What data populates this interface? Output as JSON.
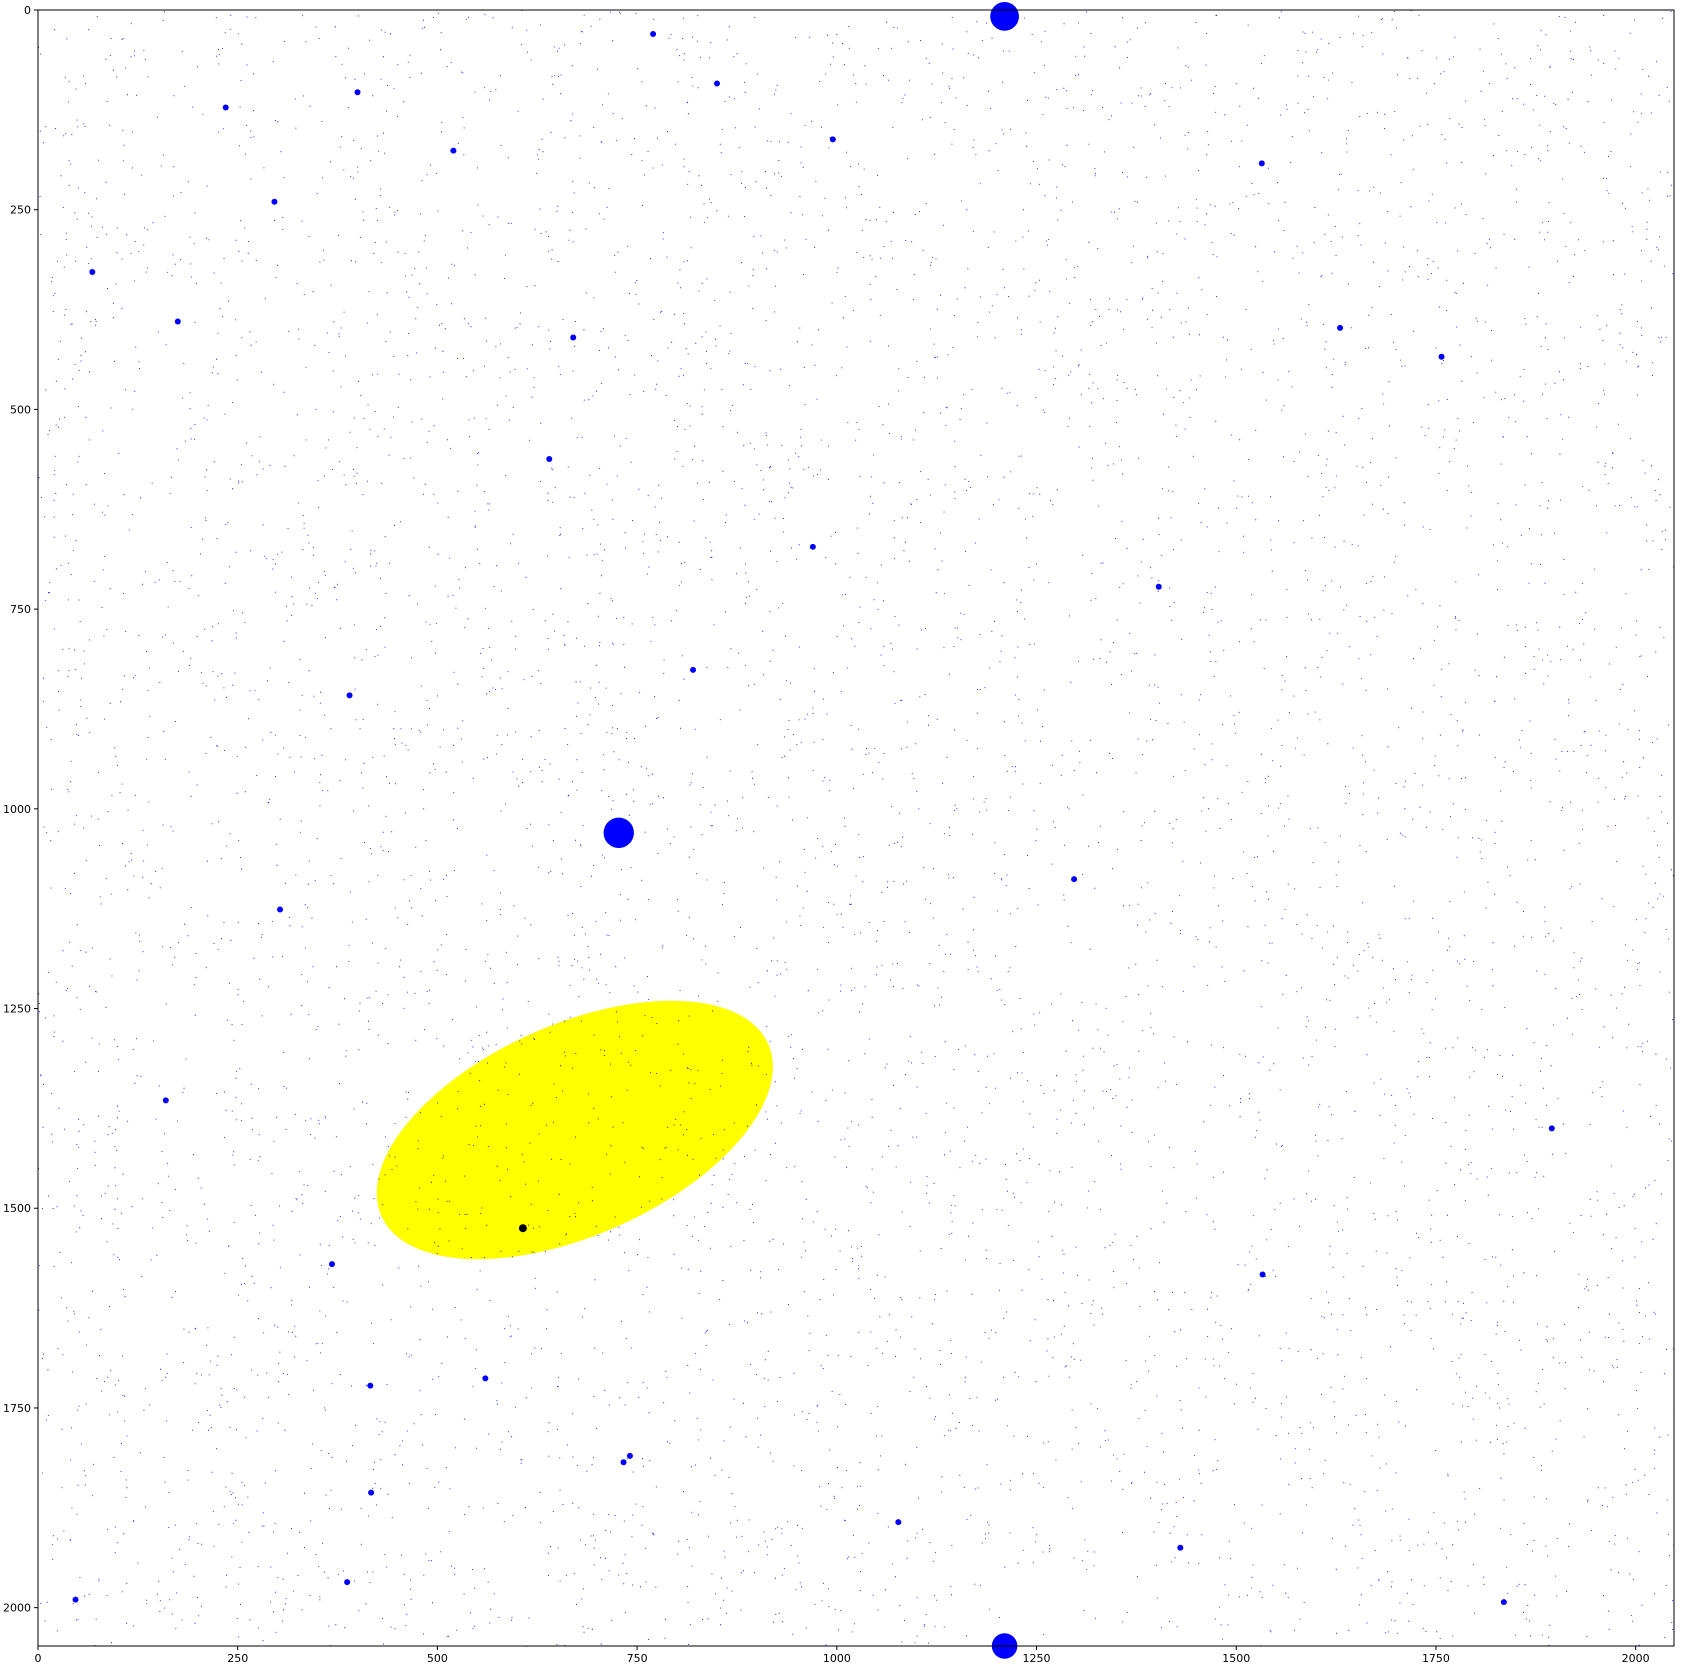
{
  "chart_data": {
    "type": "scatter",
    "title": "",
    "xlabel": "",
    "ylabel": "",
    "xlim": [
      0,
      2048
    ],
    "ylim": [
      2048,
      0
    ],
    "y_inverted": true,
    "grid": false,
    "x_ticks": [
      0,
      250,
      500,
      750,
      1000,
      1250,
      1500,
      1750,
      2000
    ],
    "y_ticks": [
      0,
      250,
      500,
      750,
      1000,
      1250,
      1500,
      1750,
      2000
    ],
    "background_point_color": "#0000ff",
    "background_point_count_approx": 20000,
    "highlight_region": {
      "shape": "ellipse",
      "color": "#ffff00",
      "center": [
        672,
        1402
      ],
      "semi_axes": [
        265,
        132
      ],
      "rotation_deg": -24,
      "inner_point_color": "#000000"
    },
    "large_sources": [
      {
        "x": 1210,
        "y": 8,
        "r": 18,
        "color": "#0000ff"
      },
      {
        "x": 727,
        "y": 1030,
        "r": 19,
        "color": "#0000ff"
      },
      {
        "x": 1210,
        "y": 2048,
        "r": 16,
        "color": "#0000ff"
      },
      {
        "x": 607,
        "y": 1525,
        "r": 5,
        "color": "#000000"
      }
    ],
    "medium_sources": [
      {
        "x": 770,
        "y": 30
      },
      {
        "x": 400,
        "y": 103
      },
      {
        "x": 235,
        "y": 122
      },
      {
        "x": 850,
        "y": 92
      },
      {
        "x": 520,
        "y": 176
      },
      {
        "x": 995,
        "y": 162
      },
      {
        "x": 1532,
        "y": 192
      },
      {
        "x": 296,
        "y": 240
      },
      {
        "x": 68,
        "y": 328
      },
      {
        "x": 175,
        "y": 390
      },
      {
        "x": 670,
        "y": 410
      },
      {
        "x": 1630,
        "y": 398
      },
      {
        "x": 1757,
        "y": 434
      },
      {
        "x": 640,
        "y": 562
      },
      {
        "x": 970,
        "y": 672
      },
      {
        "x": 1403,
        "y": 722
      },
      {
        "x": 390,
        "y": 858
      },
      {
        "x": 820,
        "y": 826
      },
      {
        "x": 303,
        "y": 1126
      },
      {
        "x": 1297,
        "y": 1088
      },
      {
        "x": 1895,
        "y": 1400
      },
      {
        "x": 368,
        "y": 1570
      },
      {
        "x": 1533,
        "y": 1583
      },
      {
        "x": 417,
        "y": 1856
      },
      {
        "x": 733,
        "y": 1818
      },
      {
        "x": 741,
        "y": 1810
      },
      {
        "x": 416,
        "y": 1722
      },
      {
        "x": 560,
        "y": 1713
      },
      {
        "x": 1430,
        "y": 1925
      },
      {
        "x": 387,
        "y": 1968
      },
      {
        "x": 47,
        "y": 1990
      },
      {
        "x": 1835,
        "y": 1993
      },
      {
        "x": 160,
        "y": 1365
      },
      {
        "x": 1077,
        "y": 1893
      }
    ]
  }
}
